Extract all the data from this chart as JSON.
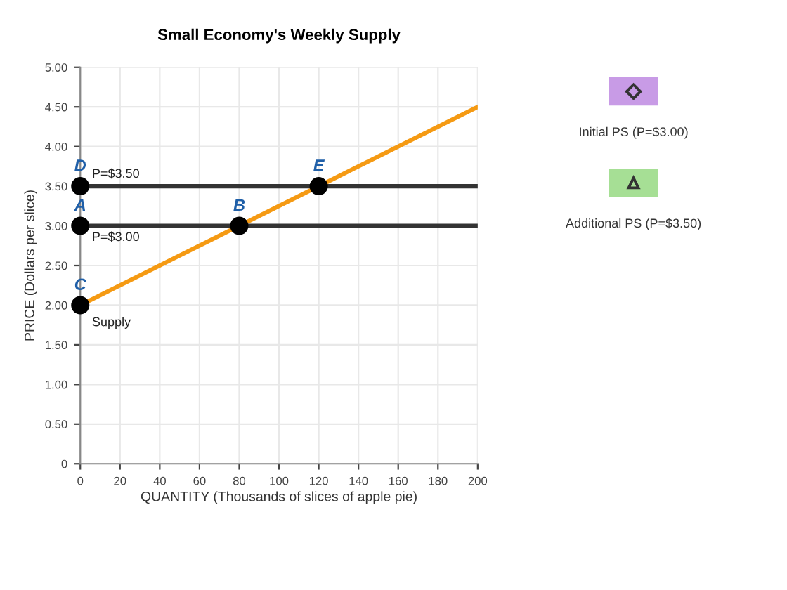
{
  "chart_data": {
    "type": "line",
    "title": "Small Economy's Weekly Supply",
    "xlabel": "QUANTITY (Thousands of slices of apple pie)",
    "ylabel": "PRICE (Dollars per slice)",
    "xlim": [
      0,
      200
    ],
    "xticks": [
      0,
      20,
      40,
      60,
      80,
      100,
      120,
      140,
      160,
      180,
      200
    ],
    "ylim": [
      0,
      5
    ],
    "yticks": [
      0,
      {
        "value": 0.5,
        "label": "0.50"
      },
      {
        "value": 1,
        "label": "1.00"
      },
      {
        "value": 1.5,
        "label": "1.50"
      },
      {
        "value": 2,
        "label": "2.00"
      },
      {
        "value": 2.5,
        "label": "2.50"
      },
      {
        "value": 3,
        "label": "3.00"
      },
      {
        "value": 3.5,
        "label": "3.50"
      },
      {
        "value": 4,
        "label": "4.00"
      },
      {
        "value": 4.5,
        "label": "4.50"
      },
      {
        "value": 5,
        "label": "5.00"
      }
    ],
    "grid": true,
    "series": [
      {
        "name": "Supply",
        "color": "#f59a13",
        "x": [
          0,
          200
        ],
        "values": [
          2,
          4.5
        ]
      },
      {
        "name": "P=$3.50",
        "color": "#333333",
        "x": [
          0,
          200
        ],
        "values": [
          3.5,
          3.5
        ]
      },
      {
        "name": "P=$3.00",
        "color": "#333333",
        "x": [
          0,
          200
        ],
        "values": [
          3,
          3
        ]
      },
      {
        "type": "scatter",
        "color": "#000000",
        "x": [
          0,
          80,
          0,
          0,
          120
        ],
        "values": [
          3,
          3,
          2,
          3.5,
          3.5
        ],
        "marker": "circle"
      }
    ],
    "annotations": [
      {
        "text": "A",
        "x": 0,
        "y": 3
      },
      {
        "text": "B",
        "x": 80,
        "y": 3
      },
      {
        "text": "C",
        "x": 0,
        "y": 2
      },
      {
        "text": "D",
        "x": 0,
        "y": 3.5
      },
      {
        "text": "E",
        "x": 120,
        "y": 3.5
      },
      "Initial PS (P=$3.00)",
      "Additional PS (P=$3.50)"
    ]
  }
}
